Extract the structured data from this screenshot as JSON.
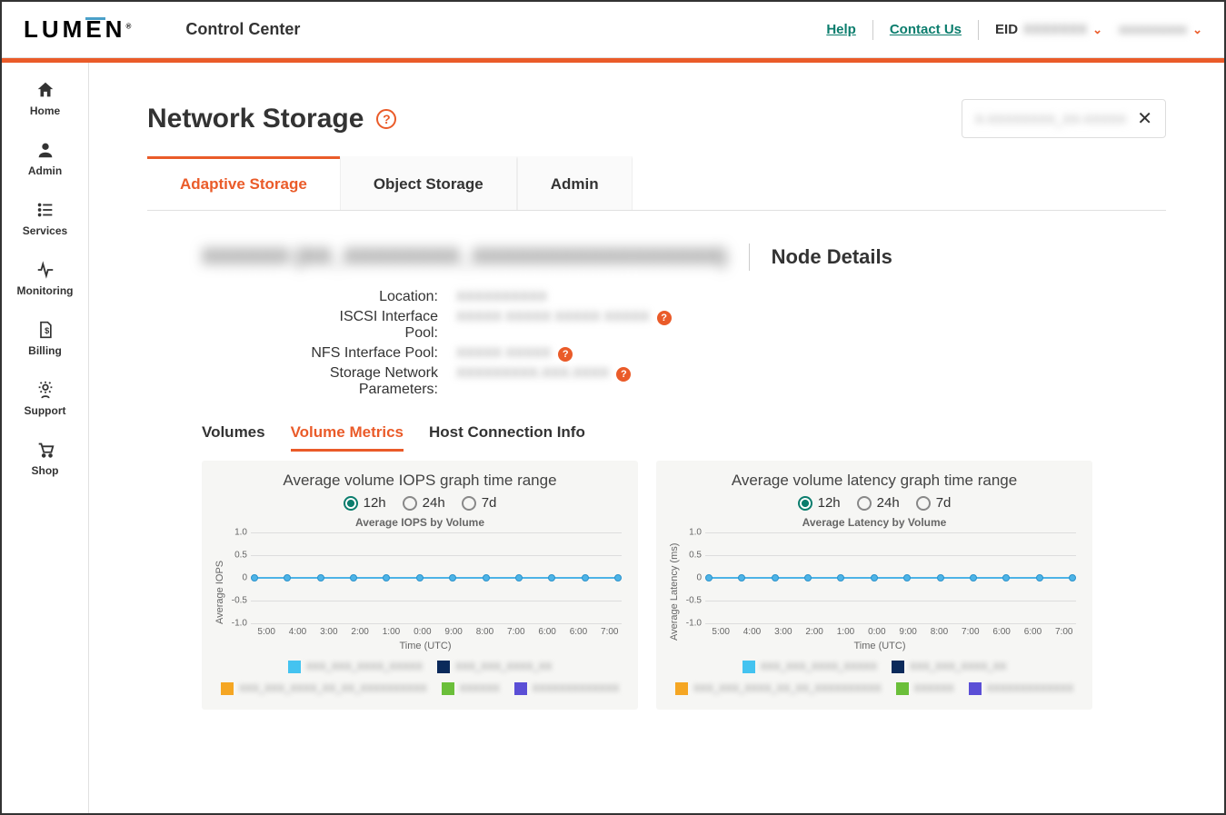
{
  "header": {
    "logo": "LUMEN",
    "title": "Control Center",
    "help": "Help",
    "contact": "Contact Us",
    "eid_label": "EID",
    "eid_value": "XXXXXXX",
    "user_name": "xxxxxxxxx"
  },
  "sidebar": [
    {
      "label": "Home",
      "icon": "home"
    },
    {
      "label": "Admin",
      "icon": "user"
    },
    {
      "label": "Services",
      "icon": "list"
    },
    {
      "label": "Monitoring",
      "icon": "pulse"
    },
    {
      "label": "Billing",
      "icon": "bill"
    },
    {
      "label": "Support",
      "icon": "gear"
    },
    {
      "label": "Shop",
      "icon": "cart"
    }
  ],
  "page": {
    "title": "Network Storage",
    "search_value": "X-XXXXXXXX_XX-XXXXX",
    "tabs": [
      "Adaptive Storage",
      "Object Storage",
      "Admin"
    ],
    "active_tab": 0
  },
  "node": {
    "blurred_title": "XXXXXX (XX_XXXXXXXX_XXXXXXXXXXXXXXXXX)",
    "section_label": "Node Details",
    "rows": [
      {
        "label": "Location:",
        "value": "XXXXXXXXXX",
        "help": false
      },
      {
        "label": "ISCSI Interface Pool:",
        "value": "XXXXX XXXXX XXXXX XXXXX",
        "help": true
      },
      {
        "label": "NFS Interface Pool:",
        "value": "XXXXX XXXXX",
        "help": true
      },
      {
        "label": "Storage Network Parameters:",
        "value": "XXXXXXXXX.XXX.XXXX",
        "help": true
      }
    ]
  },
  "sub_tabs": [
    "Volumes",
    "Volume Metrics",
    "Host Connection Info"
  ],
  "sub_active": 1,
  "charts": [
    {
      "range_title": "Average volume IOPS graph time range",
      "title": "Average IOPS by Volume",
      "ylabel": "Average IOPS",
      "xlabel": "Time (UTC)"
    },
    {
      "range_title": "Average volume latency graph time range",
      "title": "Average Latency by Volume",
      "ylabel": "Average Latency (ms)",
      "xlabel": "Time (UTC)"
    }
  ],
  "chart_common": {
    "range_options": [
      "12h",
      "24h",
      "7d"
    ],
    "range_selected": 0,
    "yticks": [
      "1.0",
      "0.5",
      "0",
      "-0.5",
      "-1.0"
    ],
    "ylim": [
      -1.0,
      1.0
    ],
    "xticks": [
      "5:00",
      "4:00",
      "3:00",
      "2:00",
      "1:00",
      "0:00",
      "9:00",
      "8:00",
      "7:00",
      "6:00",
      "6:00",
      "7:00"
    ],
    "data_value": 0,
    "n_points": 12,
    "line_color": "#4db3e6",
    "grid_color": "#dddddd",
    "background_color": "#f6f6f4",
    "legend": [
      {
        "color": "#44c3f0",
        "label": "XXX_XXX_XXXX_XXXXX"
      },
      {
        "color": "#0b2a5b",
        "label": "XXX_XXX_XXXX_XX"
      },
      {
        "color": "#f5a623",
        "label": "XXX_XXX_XXXX_XX_XX_XXXXXXXXXX"
      },
      {
        "color": "#6bbf3a",
        "label": "XXXXXX"
      },
      {
        "color": "#5b4fd6",
        "label": "XXXXXXXXXXXXX"
      }
    ]
  },
  "colors": {
    "accent": "#ea5b29",
    "teal": "#0b7d6d"
  }
}
